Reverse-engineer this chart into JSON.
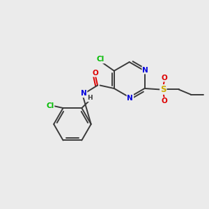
{
  "bg_color": "#ebebeb",
  "atom_colors": {
    "C": "#3a3a3a",
    "N": "#0000dd",
    "O": "#dd0000",
    "S": "#ccaa00",
    "Cl": "#00bb00",
    "H": "#3a3a3a"
  },
  "bond_color": "#3a3a3a",
  "lw": 1.4,
  "fs": 7.5
}
